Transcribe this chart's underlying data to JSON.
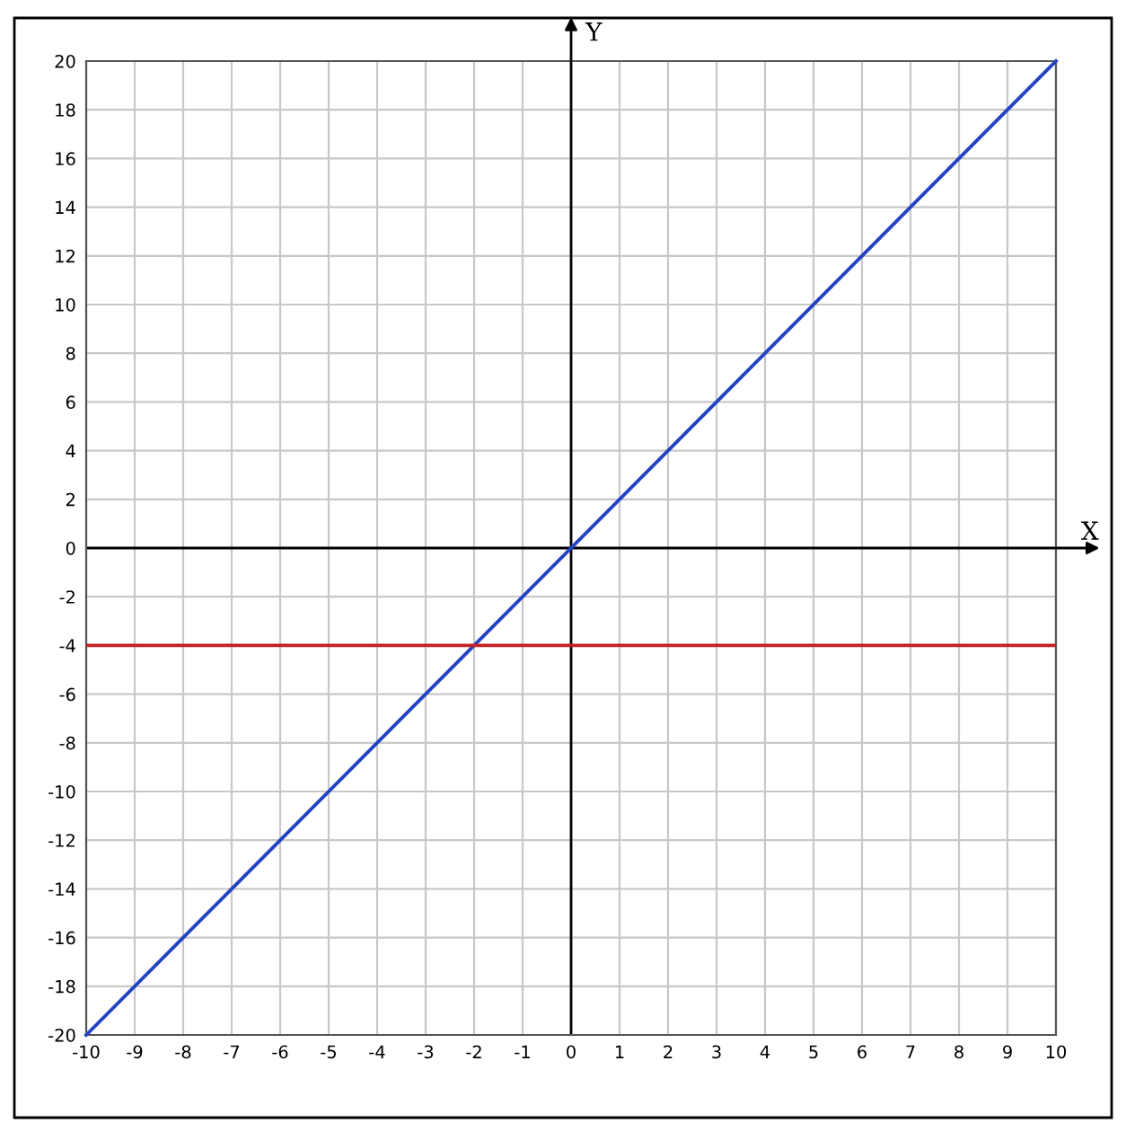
{
  "chart_data": {
    "type": "line",
    "xlabel": "X",
    "ylabel": "Y",
    "series": [
      {
        "x": [
          -10,
          10
        ],
        "values": [
          -20,
          20
        ],
        "color": "#2343c4"
      }
    ],
    "ref_lines": [
      {
        "axis": "y",
        "value": -4,
        "color": "#c02222",
        "line_style": "solid"
      }
    ],
    "xlim": [
      -10,
      10
    ],
    "ylim": [
      -20,
      20
    ],
    "xticks": [
      -10,
      -9,
      -8,
      -7,
      -6,
      -5,
      -4,
      -3,
      -2,
      -1,
      0,
      1,
      2,
      3,
      4,
      5,
      6,
      7,
      8,
      9,
      10
    ],
    "yticks": [
      -20,
      -18,
      -16,
      -14,
      -12,
      -10,
      -8,
      -6,
      -4,
      -2,
      0,
      2,
      4,
      6,
      8,
      10,
      12,
      14,
      16,
      18,
      20
    ],
    "grid": true,
    "legend": false,
    "marker": "none",
    "line_style": "solid"
  }
}
